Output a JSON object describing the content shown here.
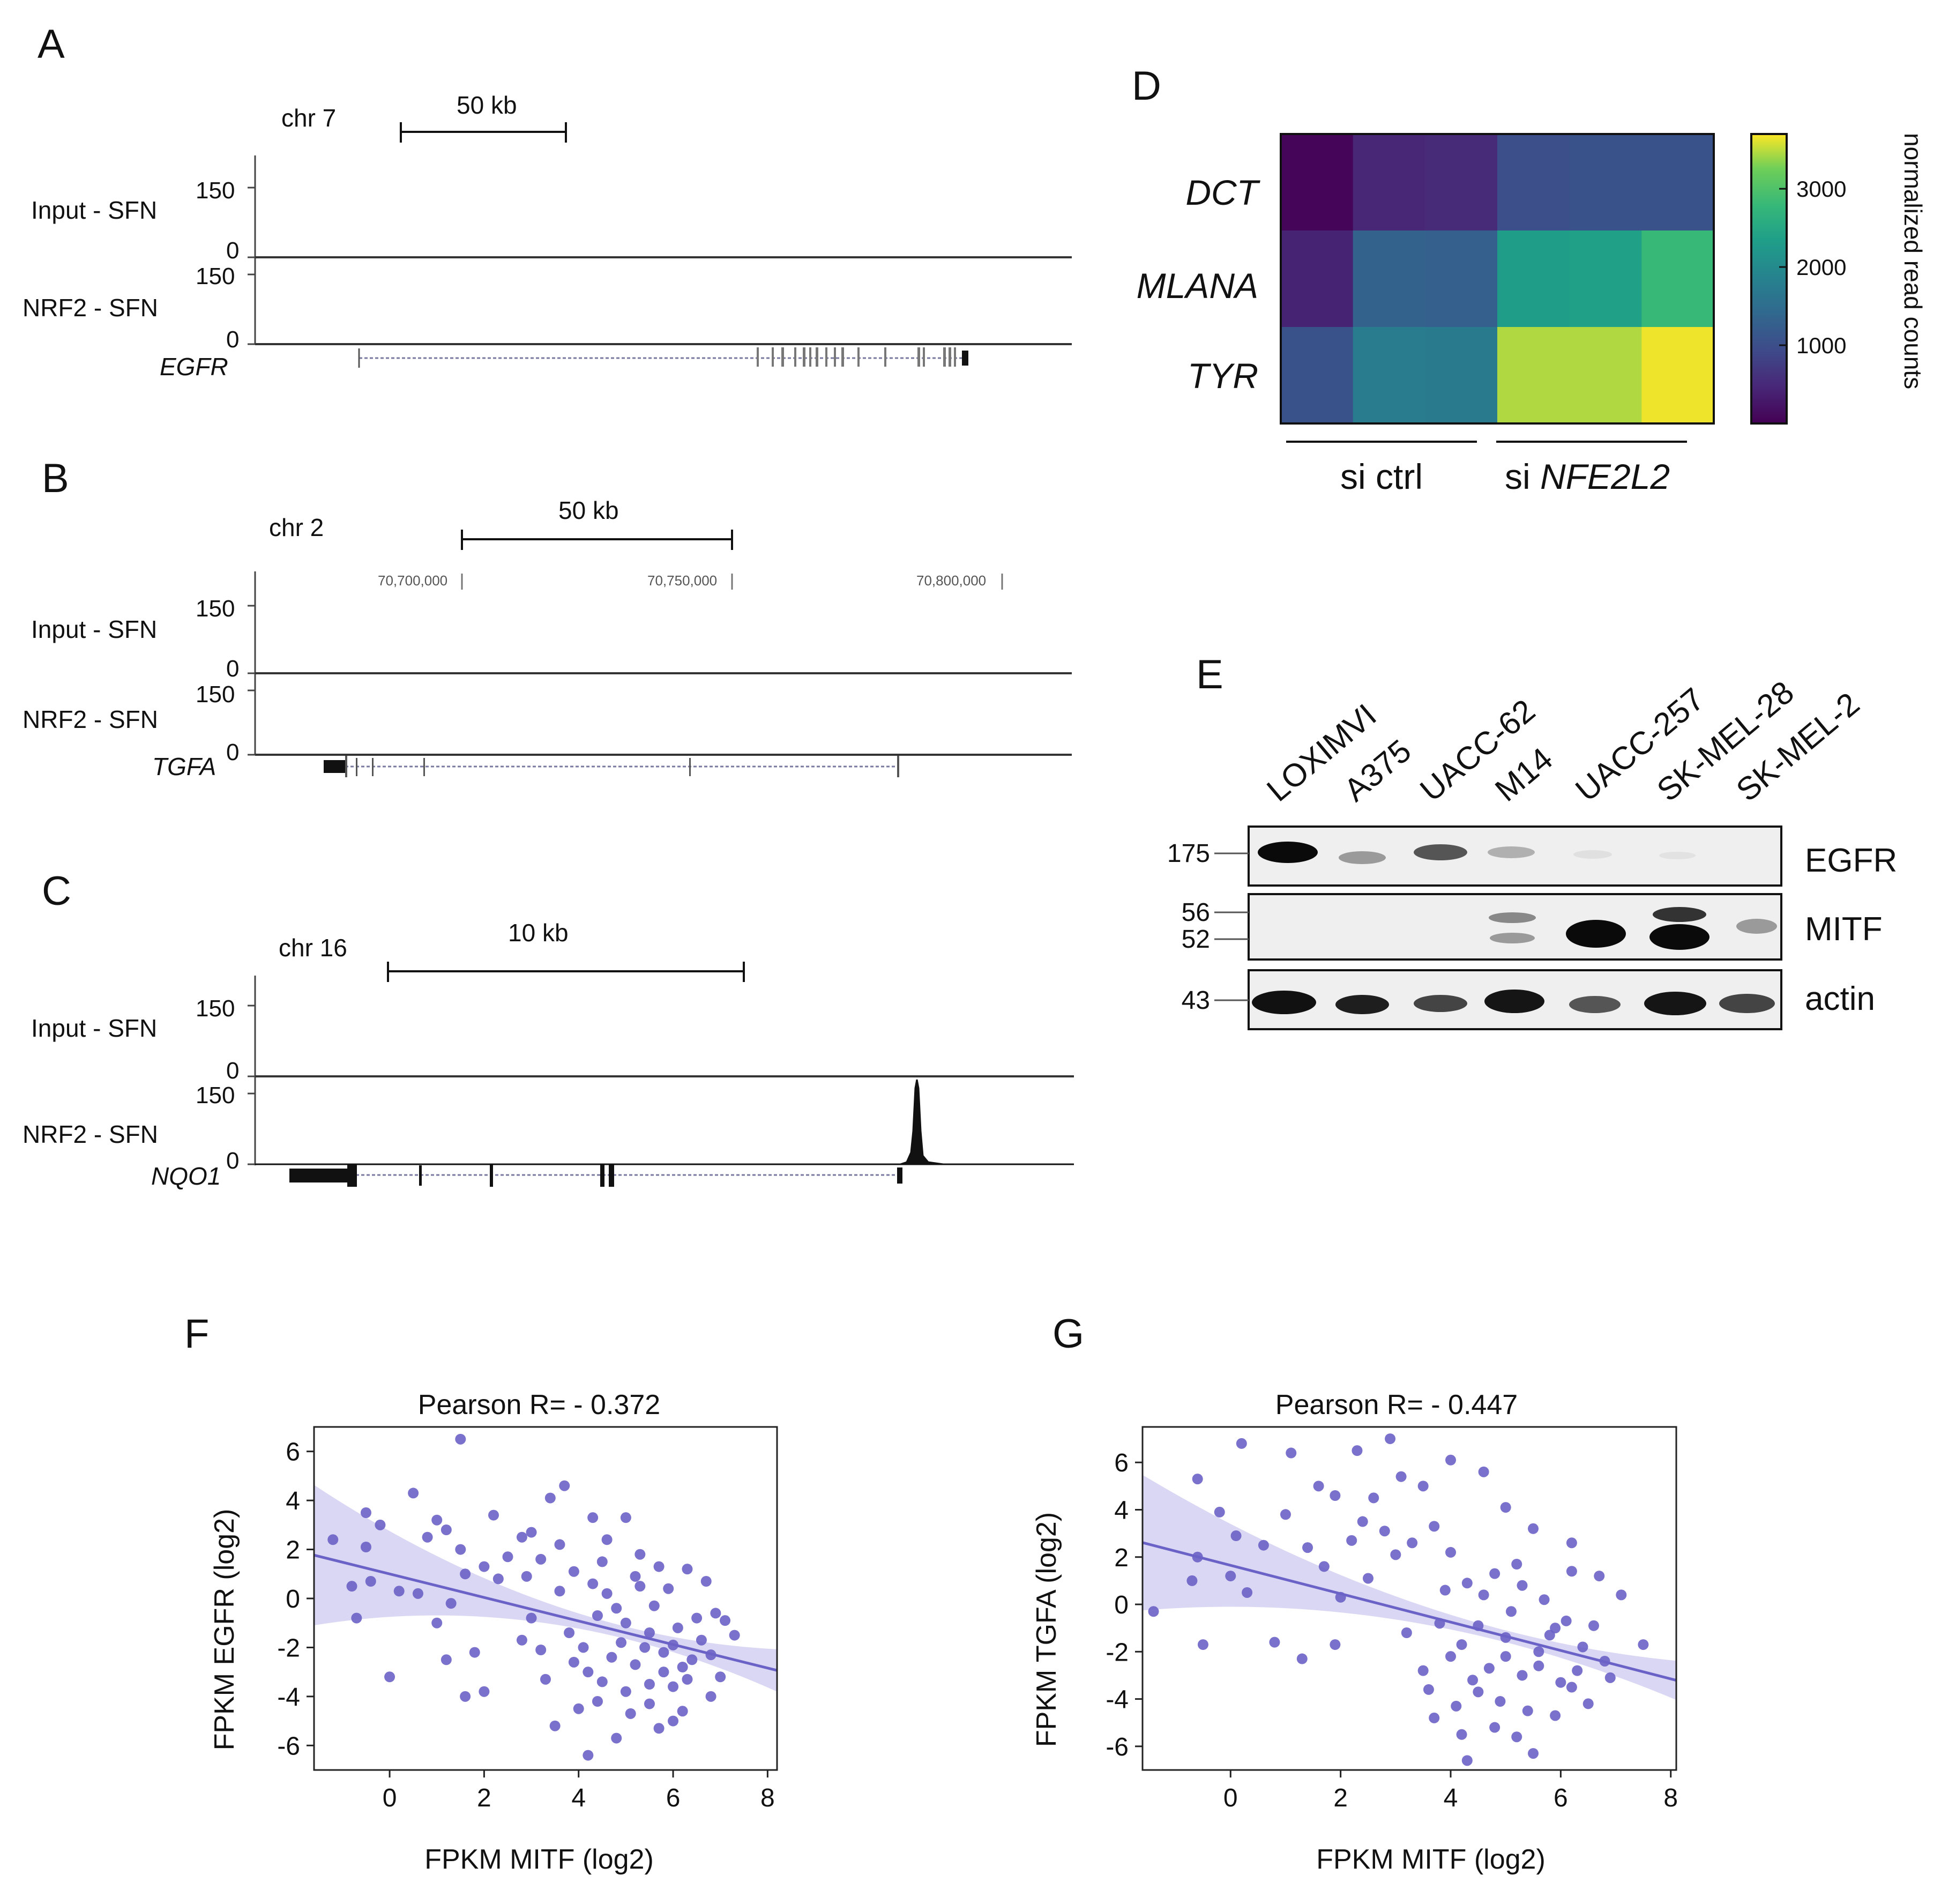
{
  "tracks": {
    "A": {
      "letter": "A",
      "chr": "chr 7",
      "scale": "50 kb",
      "input_label": "Input - SFN",
      "nrf2_label": "NRF2 - SFN",
      "ymax": "150",
      "ymin": "0",
      "gene": "EGFR"
    },
    "B": {
      "letter": "B",
      "chr": "chr 2",
      "scale": "50 kb",
      "coords": [
        "70,700,000",
        "70,750,000",
        "70,800,000"
      ],
      "input_label": "Input - SFN",
      "nrf2_label": "NRF2 - SFN",
      "ymax": "150",
      "ymin": "0",
      "gene": "TGFA"
    },
    "C": {
      "letter": "C",
      "chr": "chr 16",
      "scale": "10 kb",
      "input_label": "Input - SFN",
      "nrf2_label": "NRF2 - SFN",
      "ymax": "150",
      "ymin": "0",
      "gene": "NQO1"
    }
  },
  "heatmap": {
    "letter": "D",
    "genes": [
      "DCT",
      "MLANA",
      "TYR"
    ],
    "groups": [
      "si ctrl",
      "si "
    ],
    "group2_italic": "NFE2L2",
    "colorbar_label": "normalized read counts",
    "colorbar_ticks": [
      "3000",
      "2000",
      "1000"
    ],
    "colorbar_range": [
      0,
      3700
    ],
    "colormap": "viridis",
    "values": [
      [
        60,
        450,
        500,
        1000,
        1050,
        1050
      ],
      [
        400,
        1300,
        1250,
        2300,
        2350,
        2800
      ],
      [
        1050,
        1750,
        1700,
        3450,
        3450,
        3650
      ]
    ]
  },
  "western": {
    "letter": "E",
    "lanes": [
      "LOXIMVI",
      "A375",
      "UACC-62",
      "M14",
      "UACC-257",
      "SK-MEL-28",
      "SK-MEL-2"
    ],
    "proteins": [
      "EGFR",
      "MITF",
      "actin"
    ],
    "mw": [
      "175",
      "56",
      "52",
      "43"
    ]
  },
  "scatters": [
    {
      "letter": "F",
      "title": "Pearson R= - 0.372",
      "xlabel": "FPKM MITF (log2)",
      "ylabel": "FPKM EGFR (log2)",
      "xticks": [
        "0",
        "2",
        "4",
        "6",
        "8"
      ],
      "yticks": [
        "6",
        "4",
        "2",
        "0",
        "-2",
        "-4",
        "-6"
      ]
    },
    {
      "letter": "G",
      "title": "Pearson R= - 0.447",
      "xlabel": "FPKM MITF (log2)",
      "ylabel": "FPKM TGFA (log2)",
      "xticks": [
        "0",
        "2",
        "4",
        "6",
        "8"
      ],
      "yticks": [
        "6",
        "4",
        "2",
        "0",
        "-2",
        "-4",
        "-6"
      ]
    }
  ],
  "chart_data": [
    {
      "type": "scatter",
      "title": "Pearson R= - 0.372",
      "xlabel": "FPKM MITF (log2)",
      "ylabel": "FPKM EGFR (log2)",
      "xlim": [
        -1.6,
        8.2
      ],
      "ylim": [
        -7,
        7
      ],
      "point_color": "#6a62c6",
      "fit_line": {
        "intercept": 1.0,
        "slope": -0.48,
        "pearson_r": -0.372
      },
      "points": [
        [
          1.5,
          6.5
        ],
        [
          0.5,
          4.3
        ],
        [
          -0.5,
          3.5
        ],
        [
          3.7,
          4.6
        ],
        [
          3.4,
          4.1
        ],
        [
          -0.2,
          3.0
        ],
        [
          1.0,
          3.2
        ],
        [
          2.2,
          3.4
        ],
        [
          4.3,
          3.3
        ],
        [
          5.0,
          3.3
        ],
        [
          3.0,
          2.7
        ],
        [
          1.2,
          2.8
        ],
        [
          0.8,
          2.5
        ],
        [
          -1.2,
          2.4
        ],
        [
          -0.5,
          2.1
        ],
        [
          2.8,
          2.5
        ],
        [
          3.6,
          2.2
        ],
        [
          4.6,
          2.4
        ],
        [
          1.5,
          2.0
        ],
        [
          2.5,
          1.7
        ],
        [
          2.0,
          1.3
        ],
        [
          3.2,
          1.6
        ],
        [
          -0.4,
          0.7
        ],
        [
          -0.8,
          0.5
        ],
        [
          0.2,
          0.3
        ],
        [
          1.6,
          1.0
        ],
        [
          0.6,
          0.2
        ],
        [
          1.3,
          -0.2
        ],
        [
          -0.7,
          -0.8
        ],
        [
          2.3,
          0.8
        ],
        [
          2.9,
          0.9
        ],
        [
          3.9,
          1.1
        ],
        [
          4.5,
          1.5
        ],
        [
          5.3,
          1.8
        ],
        [
          5.7,
          1.3
        ],
        [
          6.3,
          1.2
        ],
        [
          1.0,
          -1.0
        ],
        [
          0.0,
          -3.2
        ],
        [
          1.8,
          -2.2
        ],
        [
          1.2,
          -2.5
        ],
        [
          2.8,
          -1.7
        ],
        [
          3.2,
          -2.1
        ],
        [
          1.6,
          -4.0
        ],
        [
          2.0,
          -3.8
        ],
        [
          3.3,
          -3.3
        ],
        [
          4.0,
          -4.5
        ],
        [
          3.5,
          -5.2
        ],
        [
          4.2,
          -6.4
        ],
        [
          4.8,
          -5.7
        ],
        [
          6.2,
          -4.6
        ],
        [
          6.8,
          -4.0
        ],
        [
          6.0,
          -5.0
        ],
        [
          7.0,
          -3.2
        ],
        [
          7.3,
          -1.5
        ],
        [
          6.7,
          0.7
        ],
        [
          6.9,
          -0.6
        ],
        [
          4.4,
          -0.7
        ],
        [
          5.0,
          -1.0
        ],
        [
          5.5,
          -1.4
        ],
        [
          6.0,
          -1.9
        ],
        [
          4.7,
          -2.4
        ],
        [
          5.2,
          -2.7
        ],
        [
          5.8,
          -3.0
        ],
        [
          6.4,
          -2.5
        ],
        [
          4.5,
          -3.4
        ],
        [
          5.0,
          -3.8
        ],
        [
          5.5,
          -4.3
        ],
        [
          6.0,
          -3.6
        ],
        [
          3.8,
          -1.4
        ],
        [
          4.1,
          -2.0
        ],
        [
          5.6,
          -0.3
        ],
        [
          5.9,
          0.4
        ],
        [
          6.5,
          -0.8
        ],
        [
          4.6,
          0.2
        ],
        [
          5.3,
          0.5
        ],
        [
          6.1,
          -1.2
        ],
        [
          5.4,
          -2.0
        ],
        [
          4.9,
          -1.8
        ],
        [
          6.6,
          -1.7
        ],
        [
          4.2,
          -3.0
        ],
        [
          5.1,
          -4.7
        ],
        [
          5.7,
          -5.3
        ],
        [
          6.3,
          -3.3
        ],
        [
          4.8,
          -0.4
        ],
        [
          5.8,
          -2.2
        ],
        [
          6.2,
          -2.8
        ],
        [
          3.9,
          -2.6
        ],
        [
          5.5,
          -3.5
        ],
        [
          4.4,
          -4.2
        ],
        [
          6.8,
          -2.3
        ],
        [
          7.1,
          -0.9
        ],
        [
          5.2,
          0.9
        ],
        [
          4.3,
          0.6
        ],
        [
          3.6,
          0.3
        ],
        [
          3.0,
          -0.8
        ]
      ]
    },
    {
      "type": "scatter",
      "title": "Pearson R= - 0.447",
      "xlabel": "FPKM MITF (log2)",
      "ylabel": "FPKM TGFA (log2)",
      "xlim": [
        -1.6,
        8.1
      ],
      "ylim": [
        -7,
        7.5
      ],
      "point_color": "#6a62c6",
      "fit_line": {
        "intercept": 1.65,
        "slope": -0.6,
        "pearson_r": -0.447
      },
      "points": [
        [
          0.2,
          6.8
        ],
        [
          1.1,
          6.4
        ],
        [
          2.3,
          6.5
        ],
        [
          2.9,
          7.0
        ],
        [
          4.0,
          6.1
        ],
        [
          -0.6,
          5.3
        ],
        [
          1.6,
          5.0
        ],
        [
          2.6,
          4.5
        ],
        [
          3.1,
          5.4
        ],
        [
          3.5,
          5.0
        ],
        [
          -0.2,
          3.9
        ],
        [
          1.9,
          4.6
        ],
        [
          4.6,
          5.6
        ],
        [
          5.0,
          4.1
        ],
        [
          1.0,
          3.8
        ],
        [
          0.1,
          2.9
        ],
        [
          2.4,
          3.5
        ],
        [
          3.7,
          3.3
        ],
        [
          -0.6,
          2.0
        ],
        [
          0.6,
          2.5
        ],
        [
          1.4,
          2.4
        ],
        [
          2.2,
          2.7
        ],
        [
          2.8,
          3.1
        ],
        [
          3.3,
          2.6
        ],
        [
          -0.7,
          1.0
        ],
        [
          0.0,
          1.2
        ],
        [
          1.7,
          1.6
        ],
        [
          2.5,
          1.1
        ],
        [
          3.0,
          2.1
        ],
        [
          4.0,
          2.2
        ],
        [
          5.5,
          3.2
        ],
        [
          6.2,
          2.6
        ],
        [
          -1.4,
          -0.3
        ],
        [
          -0.5,
          -1.7
        ],
        [
          0.8,
          -1.6
        ],
        [
          1.3,
          -2.3
        ],
        [
          1.9,
          -1.7
        ],
        [
          0.3,
          0.5
        ],
        [
          2.0,
          0.3
        ],
        [
          3.8,
          -0.8
        ],
        [
          3.2,
          -1.2
        ],
        [
          4.3,
          0.9
        ],
        [
          5.2,
          1.7
        ],
        [
          6.7,
          1.2
        ],
        [
          7.1,
          0.4
        ],
        [
          7.5,
          -1.7
        ],
        [
          4.0,
          -2.2
        ],
        [
          4.5,
          -3.7
        ],
        [
          3.7,
          -4.8
        ],
        [
          4.8,
          -5.2
        ],
        [
          5.5,
          -6.3
        ],
        [
          4.3,
          -6.6
        ],
        [
          5.9,
          -4.7
        ],
        [
          6.2,
          -3.5
        ],
        [
          6.8,
          -2.4
        ],
        [
          4.5,
          -0.9
        ],
        [
          5.0,
          -1.4
        ],
        [
          5.6,
          -2.0
        ],
        [
          6.1,
          -0.7
        ],
        [
          4.7,
          -2.7
        ],
        [
          5.3,
          -3.0
        ],
        [
          5.8,
          -1.3
        ],
        [
          6.4,
          -1.8
        ],
        [
          4.2,
          -1.7
        ],
        [
          5.1,
          -0.3
        ],
        [
          5.7,
          0.2
        ],
        [
          6.3,
          -2.8
        ],
        [
          4.9,
          -4.1
        ],
        [
          5.4,
          -4.5
        ],
        [
          6.0,
          -3.3
        ],
        [
          4.4,
          -3.2
        ],
        [
          5.6,
          -2.6
        ],
        [
          6.6,
          -0.9
        ],
        [
          5.2,
          -5.6
        ],
        [
          4.1,
          -4.3
        ],
        [
          3.6,
          -3.6
        ],
        [
          6.9,
          -3.1
        ],
        [
          5.9,
          -1.0
        ],
        [
          5.0,
          -2.2
        ],
        [
          4.6,
          0.4
        ],
        [
          3.5,
          -2.8
        ],
        [
          6.5,
          -4.2
        ],
        [
          6.2,
          1.4
        ],
        [
          4.8,
          1.3
        ],
        [
          5.3,
          0.8
        ],
        [
          3.9,
          0.6
        ],
        [
          4.2,
          -5.5
        ]
      ]
    }
  ]
}
